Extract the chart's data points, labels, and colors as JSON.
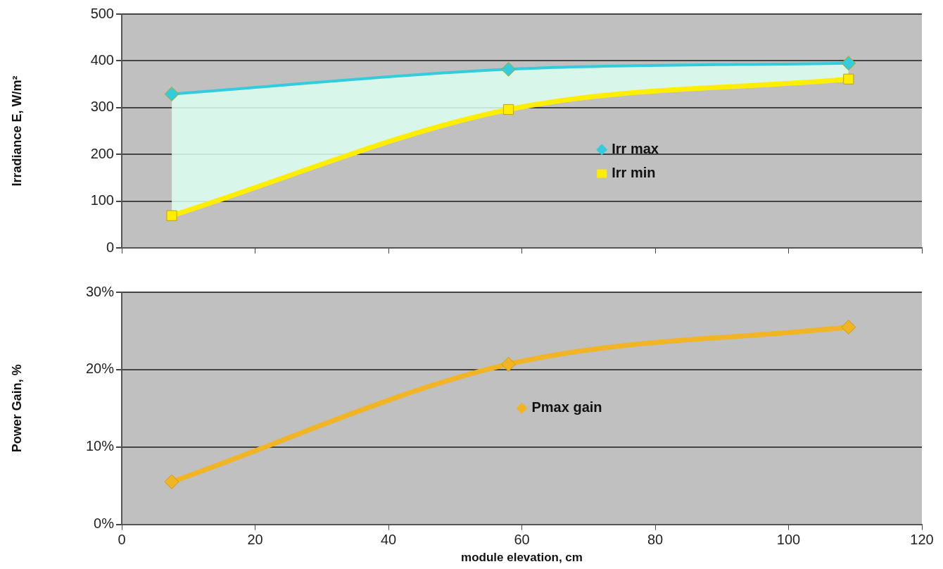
{
  "chart_data": [
    {
      "type": "line",
      "ylabel": "Irradiance E, W/m²",
      "x": [
        7.5,
        58,
        109
      ],
      "xlim": [
        0,
        120
      ],
      "xticks": [
        {
          "value": 0,
          "label": null
        },
        {
          "value": 20,
          "label": null
        },
        {
          "value": 40,
          "label": null
        },
        {
          "value": 60,
          "label": null
        },
        {
          "value": 80,
          "label": null
        },
        {
          "value": 100,
          "label": null
        },
        {
          "value": 120,
          "label": null
        }
      ],
      "ylim": [
        0,
        500
      ],
      "yticks": [
        0,
        100,
        200,
        300,
        400,
        500
      ],
      "tick_labels": "y",
      "grid": "y",
      "legend": "right",
      "series": [
        {
          "name": "Irr max",
          "type": "area",
          "color": "#33ccdd",
          "marker": "diamond",
          "values": [
            329,
            382,
            395
          ]
        },
        {
          "name": "Irr min",
          "type": "line",
          "color": "#ffee00",
          "marker": "square",
          "values": [
            69,
            296,
            361
          ]
        }
      ]
    },
    {
      "type": "line",
      "xlabel": "module elevation, cm",
      "ylabel": "Power Gain, %",
      "x": [
        7.5,
        58,
        109
      ],
      "xlim": [
        0,
        120
      ],
      "xticks": [
        0,
        20,
        40,
        60,
        80,
        100,
        120
      ],
      "ylim": [
        0,
        30
      ],
      "yticks": [
        {
          "value": 0,
          "label": "0%"
        },
        {
          "value": 10,
          "label": "10%"
        },
        {
          "value": 20,
          "label": "20%"
        },
        {
          "value": 30,
          "label": "30%"
        }
      ],
      "grid": "y",
      "legend": "center",
      "marker": "diamond",
      "series": [
        {
          "name": "Pmax gain",
          "color": "#f0b424",
          "values": [
            5.5,
            20.7,
            25.5
          ]
        }
      ]
    }
  ]
}
